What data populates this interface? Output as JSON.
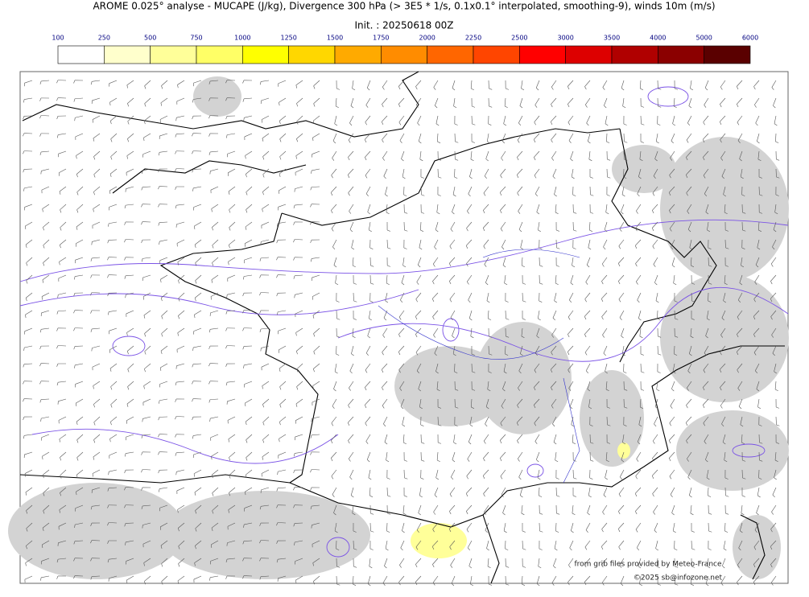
{
  "title": "AROME 0.025° analyse - MUCAPE (J/kg), Divergence 300 hPa (> 3E5 * 1/s, 0.1x0.1° interpolated, smoothing-9), winds 10m (m/s)",
  "subtitle": "Init. : 20250618 00Z",
  "colorbar": {
    "ticks": [
      100,
      250,
      500,
      750,
      1000,
      1250,
      1500,
      1750,
      2000,
      2250,
      2500,
      3000,
      3500,
      4000,
      5000,
      6000
    ],
    "colors": [
      "#ffffff",
      "#ffffcc",
      "#ffff99",
      "#ffff66",
      "#ffff00",
      "#ffd700",
      "#ffaa00",
      "#ff8c00",
      "#ff6600",
      "#ff4500",
      "#ff0000",
      "#dd0000",
      "#b00000",
      "#8b0000",
      "#5a0000"
    ]
  },
  "credits": [
    "from grib files provided by Meteo-France",
    "©2025 sb@infozone.net"
  ]
}
